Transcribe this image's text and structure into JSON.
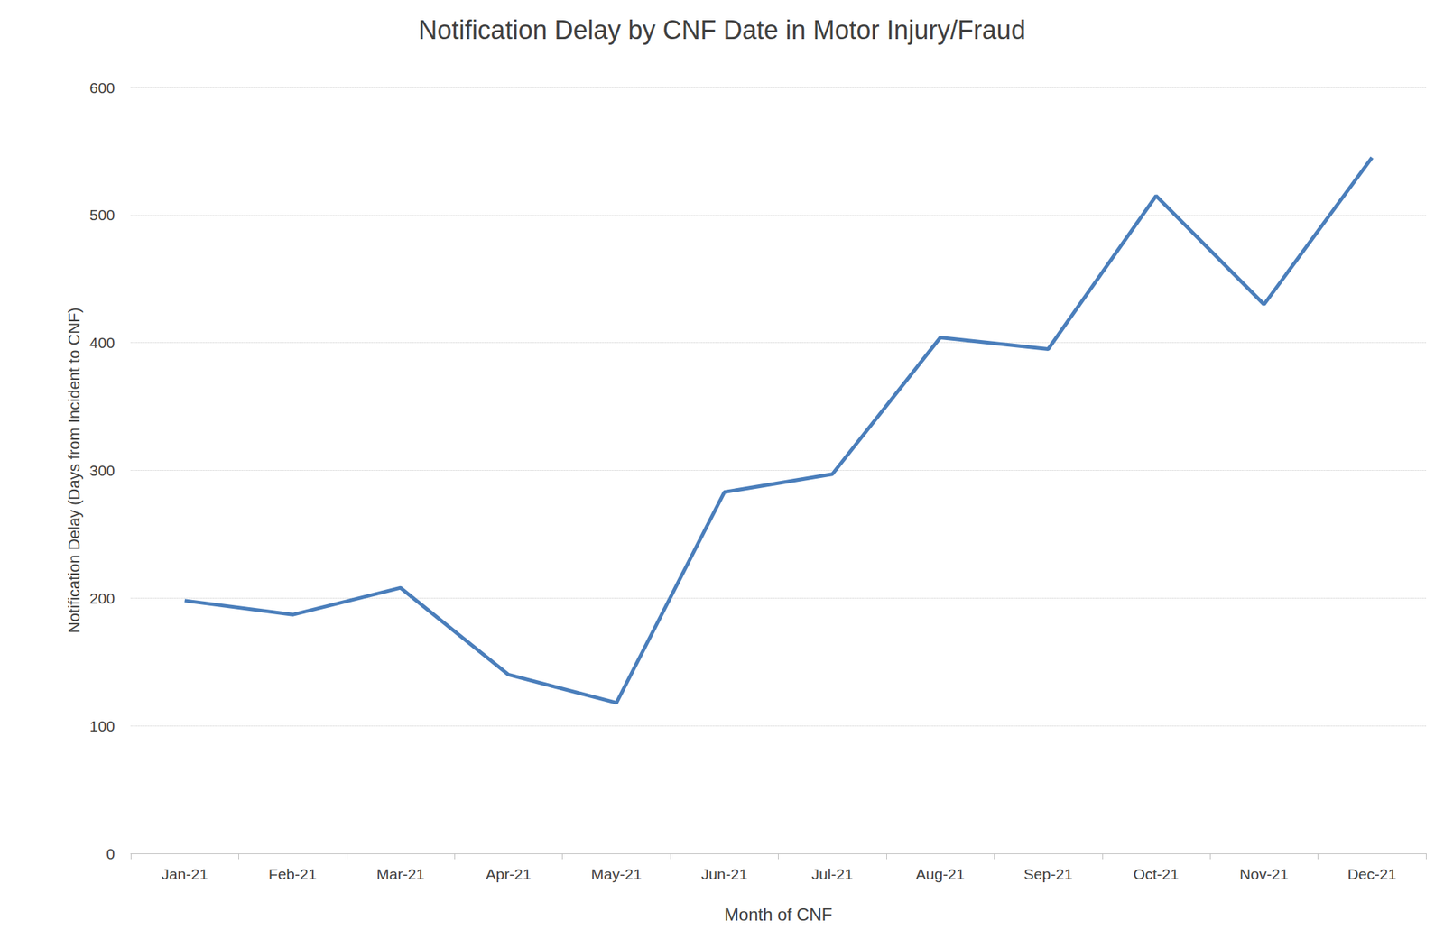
{
  "chart_data": {
    "type": "line",
    "title": "Notification Delay by CNF Date in Motor Injury/Fraud",
    "x_label": "Month of CNF",
    "y_label": "Notification Delay (Days from Incident to CNF)",
    "categories": [
      "Jan-21",
      "Feb-21",
      "Mar-21",
      "Apr-21",
      "May-21",
      "Jun-21",
      "Jul-21",
      "Aug-21",
      "Sep-21",
      "Oct-21",
      "Nov-21",
      "Dec-21"
    ],
    "values": [
      198,
      187,
      208,
      140,
      118,
      283,
      297,
      404,
      395,
      515,
      430,
      545
    ],
    "color": "#4a7ebb",
    "marker": "none",
    "ylim": [
      0,
      600
    ],
    "yticks": [
      0,
      100,
      200,
      300,
      400,
      500,
      600
    ],
    "grid": true
  }
}
